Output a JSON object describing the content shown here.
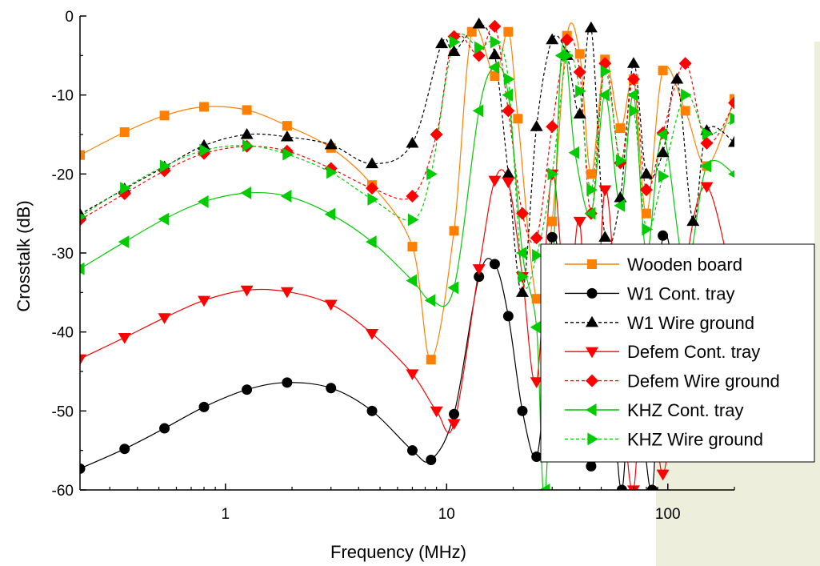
{
  "colors": {
    "orange": "#ff8000",
    "black": "#000000",
    "red": "#ff0000",
    "green": "#00cc00",
    "backdrop": "#eeeedd"
  },
  "chart_data": {
    "type": "line",
    "xlabel": "Frequency (MHz)",
    "ylabel": "Crosstalk (dB)",
    "xscale": "log",
    "xlim": [
      0.22,
      200
    ],
    "ylim": [
      -60,
      0
    ],
    "x_ticks": [
      1,
      10,
      100
    ],
    "x_tick_labels": [
      "1",
      "10",
      "100"
    ],
    "y_ticks": [
      0,
      -10,
      -20,
      -30,
      -40,
      -50,
      -60
    ],
    "y_tick_labels": [
      "0",
      "-10",
      "-20",
      "-30",
      "-40",
      "-50",
      "-60"
    ],
    "grid": false,
    "legend_position": "right",
    "series": [
      {
        "name": "Wooden board",
        "color": "#ff8000",
        "marker": "square",
        "dashed": false,
        "x": [
          0.22,
          0.35,
          0.53,
          0.8,
          1.25,
          1.9,
          3.0,
          4.6,
          7.0,
          8.5,
          10.8,
          13,
          16.5,
          19,
          21,
          25.5,
          30,
          35,
          40,
          45,
          52,
          61,
          70,
          80,
          95,
          120,
          150,
          200
        ],
        "y": [
          -17.6,
          -14.7,
          -12.6,
          -11.5,
          -11.9,
          -13.9,
          -16.7,
          -21.4,
          -29.2,
          -43.5,
          -27.2,
          -2,
          -7.6,
          -2,
          -13,
          -35.8,
          -26,
          -2.5,
          -4.8,
          -20,
          -5.5,
          -14.2,
          -8,
          -25,
          -6.9,
          -12,
          -19,
          -10.5
        ]
      },
      {
        "name": "W1 Cont. tray",
        "color": "#000000",
        "marker": "circle",
        "dashed": false,
        "x": [
          0.22,
          0.35,
          0.53,
          0.8,
          1.25,
          1.9,
          3.0,
          4.6,
          7.0,
          8.5,
          10.8,
          14,
          16.5,
          19,
          22,
          25.5,
          28,
          30,
          33,
          38,
          45,
          55,
          62,
          70,
          85,
          95,
          120,
          150,
          200
        ],
        "y": [
          -57.3,
          -54.8,
          -52.2,
          -49.5,
          -47.3,
          -46.4,
          -47.1,
          -50.0,
          -55.0,
          -56.2,
          -50.4,
          -33,
          -31.4,
          -38,
          -50,
          -55.8,
          -44,
          -28,
          -32,
          -40,
          -57,
          -48,
          -60,
          -42,
          -60,
          -27.8,
          -40,
          -35,
          -42
        ]
      },
      {
        "name": "W1 Wire ground",
        "color": "#000000",
        "marker": "triangle-up",
        "dashed": true,
        "x": [
          0.22,
          0.35,
          0.53,
          0.8,
          1.25,
          1.9,
          3.0,
          4.6,
          7.0,
          9.5,
          10.8,
          14,
          16.5,
          19,
          22,
          25.5,
          30,
          35,
          40,
          45,
          52,
          61,
          70,
          80,
          95,
          110,
          130,
          150,
          200
        ],
        "y": [
          -25.1,
          -21.9,
          -19.1,
          -16.4,
          -15.0,
          -15.3,
          -16.3,
          -18.7,
          -16.1,
          -3.5,
          -4.5,
          -1,
          -4.9,
          -20,
          -35,
          -14.0,
          -3,
          -5,
          -12.4,
          -1.5,
          -28,
          -23,
          -6,
          -20,
          -17.3,
          -8,
          -26,
          -14.5,
          -16
        ]
      },
      {
        "name": "Defem Cont. tray",
        "color": "#ff0000",
        "marker": "triangle-down",
        "dashed": false,
        "x": [
          0.22,
          0.35,
          0.53,
          0.8,
          1.25,
          1.9,
          3.0,
          4.6,
          7.0,
          9,
          10.8,
          14,
          16.5,
          19,
          22,
          25.5,
          30,
          35,
          40,
          45,
          52,
          61,
          70,
          80,
          95,
          120,
          150,
          200
        ],
        "y": [
          -43.4,
          -40.7,
          -38.2,
          -36.0,
          -34.7,
          -34.9,
          -36.5,
          -40.2,
          -45.3,
          -50,
          -51.6,
          -32,
          -20.8,
          -21,
          -33,
          -46.3,
          -20,
          -38,
          -26,
          -55,
          -22,
          -45,
          -60,
          -35,
          -58,
          -32,
          -21.6,
          -35
        ]
      },
      {
        "name": "Defem Wire ground",
        "color": "#ff0000",
        "marker": "diamond",
        "dashed": true,
        "x": [
          0.22,
          0.35,
          0.53,
          0.8,
          1.25,
          1.9,
          3.0,
          4.6,
          7.0,
          9,
          10.8,
          14,
          16.5,
          19,
          22,
          25.5,
          30,
          35,
          40,
          45,
          52,
          61,
          70,
          80,
          95,
          120,
          150,
          200
        ],
        "y": [
          -25.8,
          -22.5,
          -19.6,
          -17.4,
          -16.5,
          -17.1,
          -19.3,
          -21.8,
          -22.8,
          -15,
          -2.6,
          -5,
          -1.3,
          -12,
          -25,
          -28.1,
          -14,
          -3,
          -7.1,
          -25,
          -6,
          -18.6,
          -8,
          -22,
          -14.8,
          -6,
          -16.1,
          -11
        ]
      },
      {
        "name": "KHZ Cont. tray",
        "color": "#00cc00",
        "marker": "triangle-left",
        "dashed": false,
        "x": [
          0.22,
          0.35,
          0.53,
          0.8,
          1.25,
          1.9,
          3.0,
          4.6,
          7.0,
          8.5,
          10.8,
          14,
          16.5,
          19,
          22,
          25.5,
          28,
          33,
          38,
          45,
          52,
          61,
          70,
          80,
          95,
          120,
          150,
          200
        ],
        "y": [
          -32.0,
          -28.6,
          -25.7,
          -23.5,
          -22.4,
          -22.8,
          -25.1,
          -28.6,
          -33.5,
          -36,
          -34.4,
          -12,
          -6.5,
          -10,
          -30,
          -39.4,
          -60,
          -5,
          -17.3,
          -25,
          -10,
          -24,
          -10,
          -30,
          -15,
          -32,
          -19,
          -20
        ]
      },
      {
        "name": "KHZ Wire ground",
        "color": "#00cc00",
        "marker": "triangle-right",
        "dashed": true,
        "x": [
          0.22,
          0.35,
          0.53,
          0.8,
          1.25,
          1.9,
          3.0,
          4.6,
          7.0,
          8.5,
          10.8,
          14,
          16.5,
          19,
          22,
          25.5,
          30,
          35,
          40,
          45,
          52,
          61,
          70,
          80,
          95,
          120,
          150,
          200
        ],
        "y": [
          -25.4,
          -21.8,
          -19.0,
          -17.0,
          -16.4,
          -17.5,
          -19.8,
          -23.2,
          -25.8,
          -20,
          -3.3,
          -4,
          -3.3,
          -8,
          -33,
          -30.3,
          -20,
          -5,
          -9.5,
          -22,
          -7,
          -18.3,
          -12,
          -27,
          -20.3,
          -10,
          -14.9,
          -13
        ]
      }
    ]
  }
}
